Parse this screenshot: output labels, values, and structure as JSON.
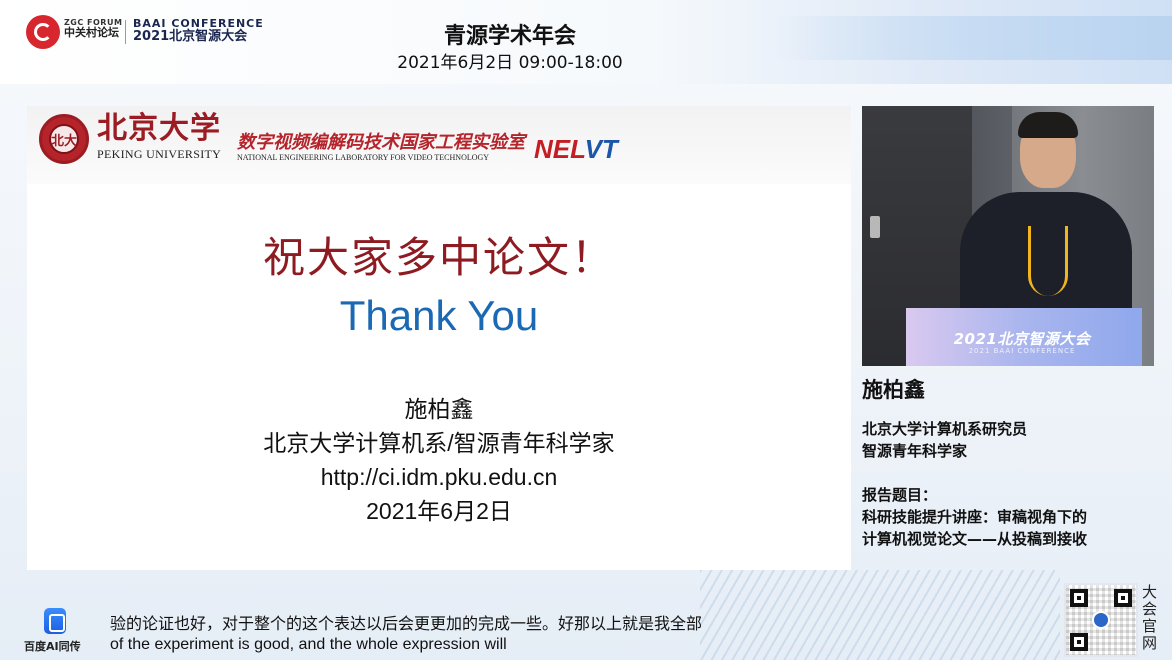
{
  "header": {
    "zgc_forum_en": "ZGC FORUM",
    "zgc_forum_cn": "中关村论坛",
    "baai_en": "BAAI CONFERENCE",
    "baai_cn": "2021北京智源大会",
    "event_title": "青源学术年会",
    "event_time": "2021年6月2日   09:00-18:00"
  },
  "slide": {
    "university_cn": "北京大学",
    "university_en": "PEKING UNIVERSITY",
    "lab_cn": "数字视频编解码技术国家工程实验室",
    "lab_en": "NATIONAL ENGINEERING LABORATORY FOR VIDEO TECHNOLOGY",
    "lab_logo_part1": "NEL",
    "lab_logo_part2": "VT",
    "wish": "祝大家多中论文！",
    "thanks": "Thank You",
    "presenter": "施柏鑫",
    "affiliation": "北京大学计算机系/智源青年科学家",
    "website": "http://ci.idm.pku.edu.cn",
    "date": "2021年6月2日"
  },
  "video": {
    "podium_text": "2021北京智源大会",
    "podium_sub": "2021 BAAI CONFERENCE"
  },
  "speaker": {
    "name": "施柏鑫",
    "title_line1": "北京大学计算机系研究员",
    "title_line2": "智源青年科学家",
    "topic_label": "报告题目：",
    "topic_line1": "科研技能提升讲座：审稿视角下的",
    "topic_line2": "计算机视觉论文——从投稿到接收"
  },
  "footer": {
    "baidu_label": "百度AI同传",
    "subtitle_cn": "验的论证也好，对于整个的这个表达以后会更更加的完成一些。好那以上就是我全部",
    "subtitle_en": "of the experiment is good, and the whole expression will",
    "qr_caption": "大会官网"
  },
  "colors": {
    "pku_red": "#9b1c22",
    "thanks_blue": "#1b69b5",
    "nelvt_red": "#c41e24",
    "nelvt_blue": "#1d56a8"
  }
}
